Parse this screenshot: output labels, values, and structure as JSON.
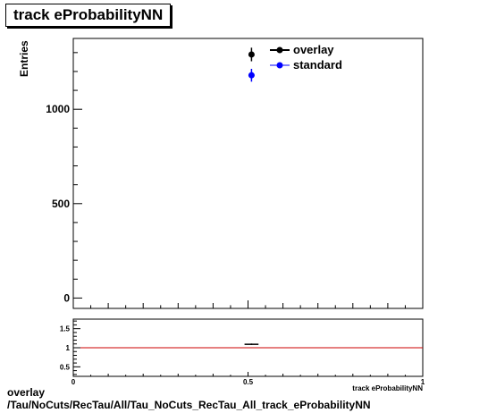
{
  "title": "track eProbabilityNN",
  "caption": {
    "line1": "overlay",
    "line2": "/Tau/NoCuts/RecTau/All/Tau_NoCuts_RecTau_All_track_eProbabilityNN"
  },
  "colors": {
    "overlay": "#000000",
    "standard": "#0000ff",
    "ratio_line": "#cc0000"
  },
  "chart_data": [
    {
      "type": "scatter",
      "panel": "main",
      "title": "track eProbabilityNN",
      "xlabel": "",
      "ylabel": "Entries",
      "xlim": [
        0,
        1
      ],
      "ylim": [
        -55,
        1375
      ],
      "yticks": [
        0,
        500,
        1000
      ],
      "ytick_labels": [
        "0",
        "500",
        "1000"
      ],
      "legend": {
        "placement": "top-right",
        "entries": [
          "overlay",
          "standard"
        ]
      },
      "series": [
        {
          "name": "overlay",
          "color": "#000000",
          "points": [
            {
              "x": 0.51,
              "y": 1290,
              "yerr": 36
            }
          ]
        },
        {
          "name": "standard",
          "color": "#0000ff",
          "points": [
            {
              "x": 0.51,
              "y": 1180,
              "yerr": 34
            }
          ]
        }
      ]
    },
    {
      "type": "scatter",
      "panel": "ratio",
      "xlabel": "track eProbabilityNN",
      "ylabel": "",
      "xlim": [
        0,
        1
      ],
      "ylim": [
        0.25,
        1.75
      ],
      "yticks": [
        0.5,
        1,
        1.5
      ],
      "ytick_labels": [
        "0.5",
        "1",
        "1.5"
      ],
      "xticks": [
        0,
        0.5,
        1
      ],
      "xtick_labels": [
        "0",
        "0.5",
        "1"
      ],
      "reference_line": 1,
      "points": [
        {
          "x": 0.51,
          "y": 1.09,
          "xerr": 0.02,
          "yerr": 0.02
        }
      ]
    }
  ]
}
